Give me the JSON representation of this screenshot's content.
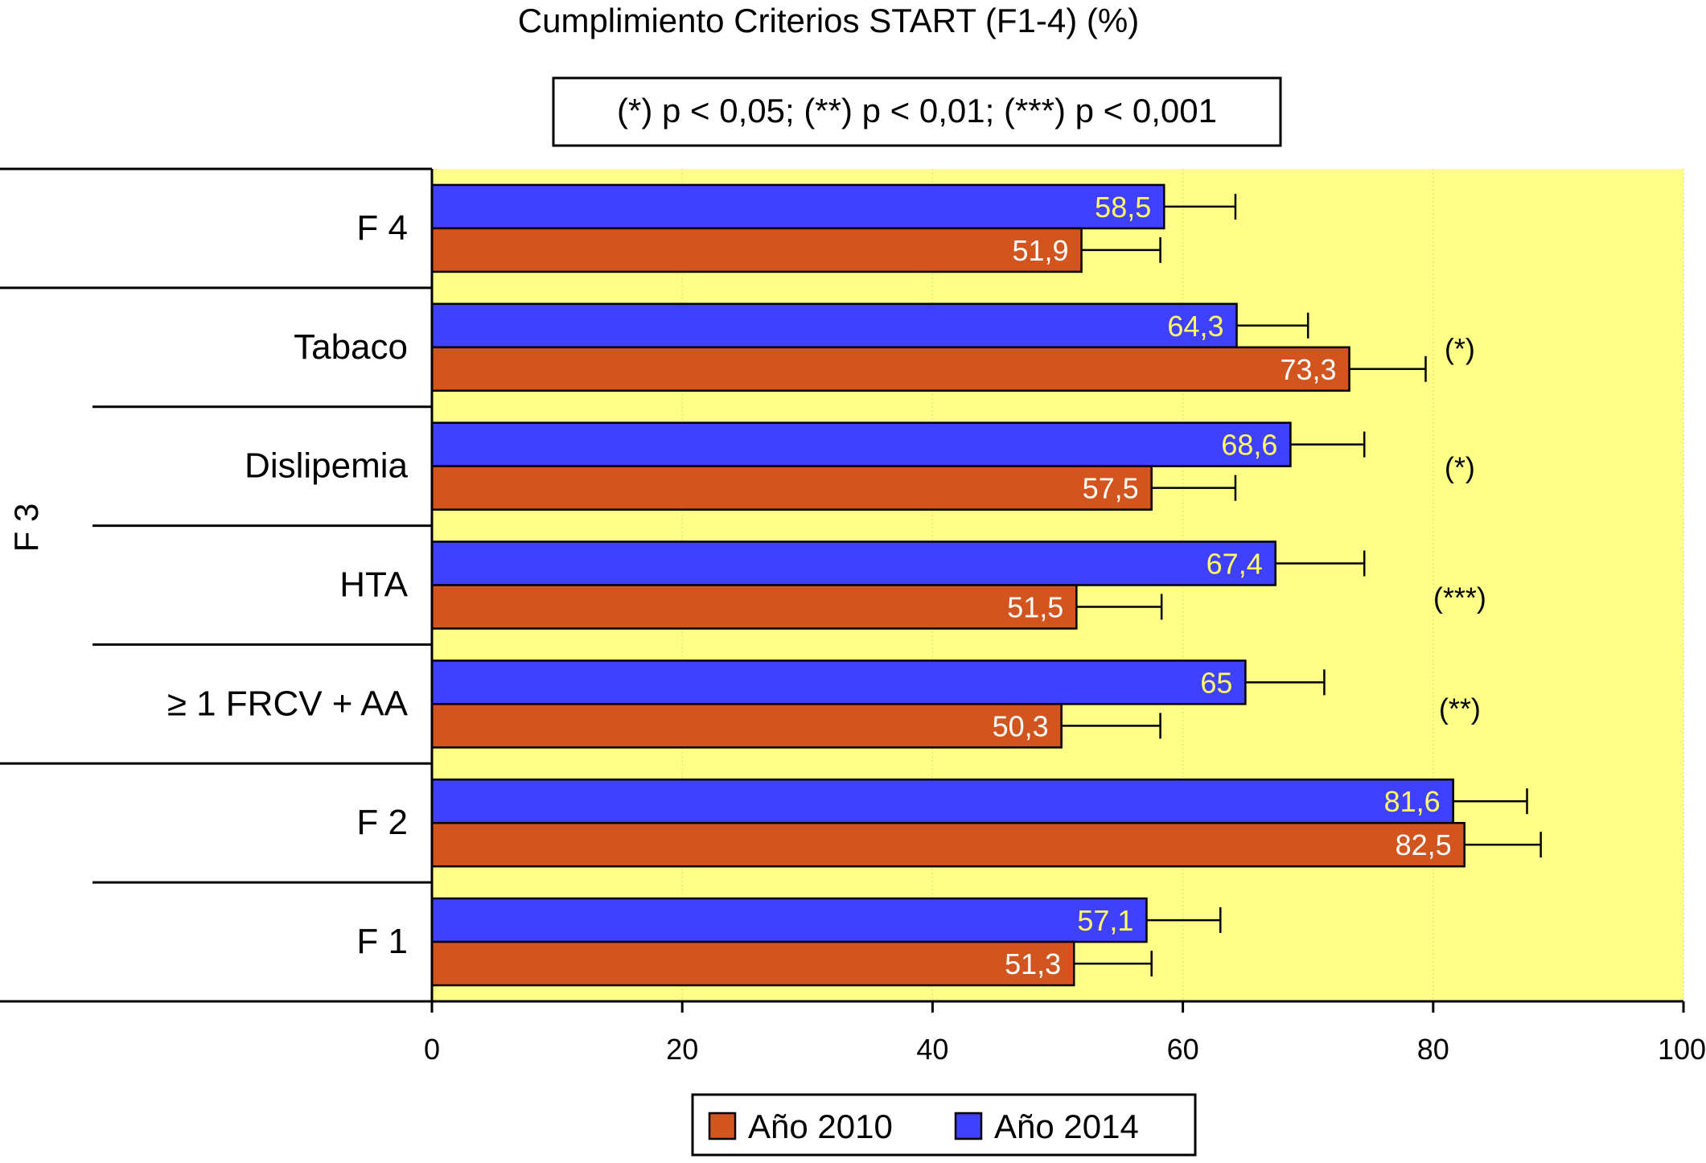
{
  "chart_data": {
    "type": "bar",
    "orientation": "horizontal",
    "title": "Cumplimiento Criterios START (F1-4) (%)",
    "significance_note": "(*) p < 0,05; (**) p < 0,01; (***) p < 0,001",
    "xlim": [
      0,
      100
    ],
    "x_ticks": [
      0,
      20,
      40,
      60,
      80,
      100
    ],
    "x_tick_labels": [
      "0",
      "20",
      "40",
      "60",
      "80",
      "100"
    ],
    "y_group_label": "F 3",
    "grid": true,
    "legend_position": "bottom",
    "categories": [
      "F 4",
      "Tabaco",
      "Dislipemia",
      "HTA",
      "≥ 1 FRCV + AA",
      "F 2",
      "F 1"
    ],
    "series": [
      {
        "name": "Año 2014",
        "color": "#4040ff",
        "label_color": "#ffff66",
        "values": [
          58.5,
          64.3,
          68.6,
          67.4,
          65,
          81.6,
          57.1
        ],
        "value_labels": [
          "58,5",
          "64,3",
          "68,6",
          "67,4",
          "65",
          "81,6",
          "57,1"
        ],
        "error_upper": [
          64.2,
          70.0,
          74.5,
          74.5,
          71.3,
          87.5,
          63.0
        ]
      },
      {
        "name": "Año 2010",
        "color": "#d2541e",
        "label_color": "#ffffff",
        "values": [
          51.9,
          73.3,
          57.5,
          51.5,
          50.3,
          82.5,
          51.3
        ],
        "value_labels": [
          "51,9",
          "73,3",
          "57,5",
          "51,5",
          "50,3",
          "82,5",
          "51,3"
        ],
        "error_upper": [
          58.2,
          79.4,
          64.2,
          58.3,
          58.2,
          88.6,
          57.5
        ]
      }
    ],
    "significance_markers": [
      "",
      "(*)",
      "(*)",
      "(***)",
      "(**)",
      "",
      ""
    ],
    "legend_order": [
      "Año 2010",
      "Año 2014"
    ],
    "plot_background": "#ffff88"
  }
}
